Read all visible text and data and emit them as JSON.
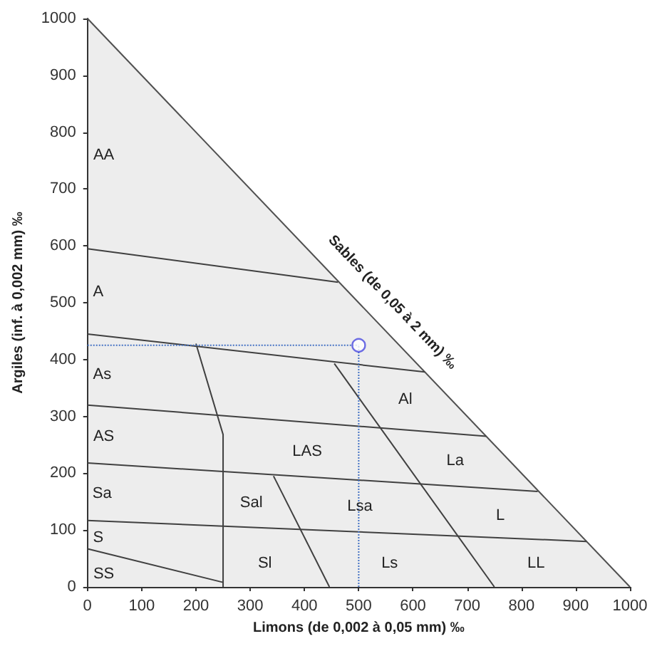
{
  "chart_data": {
    "type": "line",
    "xlabel": "Limons (de 0,002 à 0,05 mm) ‰",
    "ylabel": "Argiles (inf. à 0,002 mm) ‰",
    "xlim": [
      0,
      1000
    ],
    "ylim": [
      0,
      1000
    ],
    "xticks": [
      0,
      100,
      200,
      300,
      400,
      500,
      600,
      700,
      800,
      900,
      1000
    ],
    "yticks": [
      0,
      100,
      200,
      300,
      400,
      500,
      600,
      700,
      800,
      900,
      1000
    ],
    "grid": false,
    "series": [
      {
        "type": "area",
        "color": "#505050",
        "x": [
          0,
          1000
        ],
        "values": [
          1000,
          0
        ]
      },
      {
        "color": "#404040",
        "x": [
          0,
          462
        ],
        "values": [
          595,
          536
        ]
      },
      {
        "color": "#404040",
        "x": [
          0,
          622
        ],
        "values": [
          445,
          378
        ]
      },
      {
        "color": "#404040",
        "x": [
          0,
          735
        ],
        "values": [
          320,
          265
        ]
      },
      {
        "color": "#404040",
        "x": [
          0,
          830
        ],
        "values": [
          218,
          168
        ]
      },
      {
        "color": "#404040",
        "x": [
          0,
          920
        ],
        "values": [
          117,
          80
        ]
      },
      {
        "color": "#404040",
        "x": [
          0,
          250
        ],
        "values": [
          67,
          8
        ]
      },
      {
        "color": "#404040",
        "x": [
          250,
          250,
          200
        ],
        "values": [
          0,
          268,
          428
        ]
      },
      {
        "color": "#404040",
        "x": [
          343,
          446
        ],
        "values": [
          195,
          0
        ]
      },
      {
        "color": "#404040",
        "x": [
          455,
          750
        ],
        "values": [
          393,
          0
        ]
      },
      {
        "color": "#4472c4",
        "line_style": "dotted",
        "x": [
          0,
          500
        ],
        "values": [
          425,
          425
        ]
      },
      {
        "color": "#4472c4",
        "line_style": "dotted",
        "x": [
          500,
          500
        ],
        "values": [
          0,
          425
        ]
      },
      {
        "type": "scatter",
        "color": "#4a4ae0",
        "marker": "circle",
        "x": [
          500
        ],
        "values": [
          425
        ]
      }
    ],
    "annotations": [
      "Sables (de 0,05 à 2 mm) ‰",
      "AA",
      "A",
      "As",
      "AS",
      "Sa",
      "S",
      "SS",
      "Sal",
      "Sl",
      "LAS",
      "Al",
      "La",
      "Lsa",
      "L",
      "Ls",
      "LL"
    ]
  }
}
